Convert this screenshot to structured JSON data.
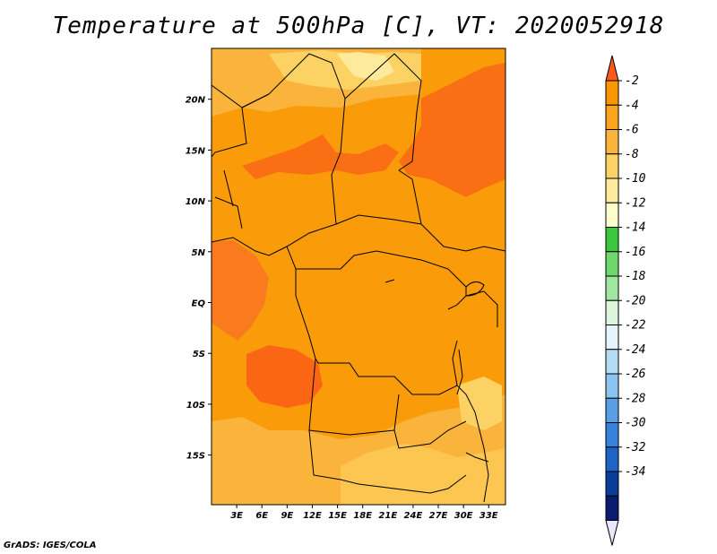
{
  "title": "Temperature at 500hPa [C], VT: 2020052918",
  "credit": "GrADS: IGES/COLA",
  "map": {
    "lon_range": [
      0,
      35
    ],
    "lat_range": [
      -20,
      25
    ],
    "x_ticks": [
      "3E",
      "6E",
      "9E",
      "12E",
      "15E",
      "18E",
      "21E",
      "24E",
      "27E",
      "30E",
      "33E"
    ],
    "y_ticks": [
      "20N",
      "15N",
      "10N",
      "5N",
      "EQ",
      "5S",
      "10S",
      "15S"
    ],
    "dominant_band": "-6 to -4",
    "regions": [
      {
        "name": "north-central sahel warm band",
        "range": "-4 to -2"
      },
      {
        "name": "northeast sudan warm area",
        "range": "-4 to -2"
      },
      {
        "name": "angola coast warm area",
        "range": "-4 to -2"
      },
      {
        "name": "gabon coast warm area",
        "range": "-4 to -2"
      },
      {
        "name": "northern libya/niger cool area",
        "range": "-10 to -6"
      },
      {
        "name": "southern africa cool area",
        "range": "-10 to -6"
      }
    ]
  },
  "colorbar": {
    "labels": [
      "-2",
      "-4",
      "-6",
      "-8",
      "-10",
      "-12",
      "-14",
      "-16",
      "-18",
      "-20",
      "-22",
      "-24",
      "-26",
      "-28",
      "-30",
      "-32",
      "-34"
    ],
    "colors": [
      "#fa5a1e",
      "#fa9600",
      "#faa31e",
      "#fab43c",
      "#fcd264",
      "#fdea9a",
      "#fefecb",
      "#3cc83c",
      "#6ed76e",
      "#a0e6a0",
      "#dcf5dc",
      "#e6f4fb",
      "#b4dcf5",
      "#8cc3f0",
      "#5a9fe6",
      "#3782dc",
      "#1e64c8",
      "#0a3c9a",
      "#0a1c6e",
      "#e8e8ff"
    ]
  }
}
